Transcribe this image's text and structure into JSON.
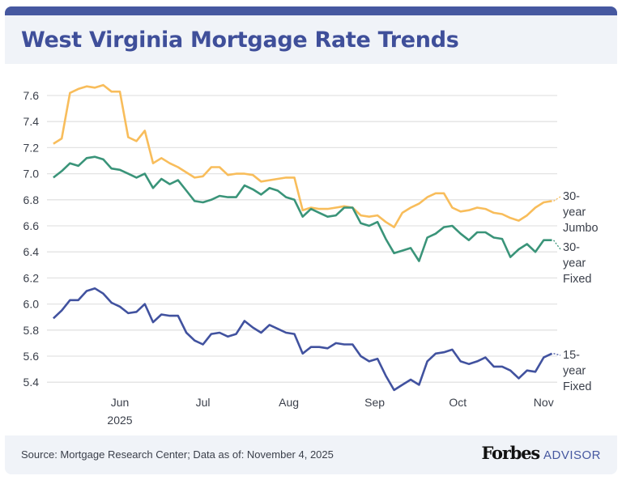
{
  "header": {
    "title": "West Virginia Mortgage Rate Trends"
  },
  "footer": {
    "source": "Source: Mortgage Research Center; Data as of: November 4, 2025",
    "logo_brand": "Forbes",
    "logo_product": "ADVISOR"
  },
  "colors": {
    "header_band": "#4658A0",
    "title": "#3F4F9A",
    "panel_bg": "#F0F3F8",
    "grid": "#E3E3E3"
  },
  "chart_data": {
    "type": "line",
    "title": "West Virginia Mortgage Rate Trends",
    "xlabel": "",
    "ylabel": "",
    "ylim": [
      5.4,
      7.6
    ],
    "grid": true,
    "legend": "end-of-line labels (right)",
    "y_ticks": [
      "5.4",
      "5.6",
      "5.8",
      "6.0",
      "6.2",
      "6.4",
      "6.6",
      "6.8",
      "7.0",
      "7.2",
      "7.4",
      "7.6"
    ],
    "x_ticks": [
      {
        "date": "2025-06-01",
        "label": "Jun",
        "sublabel": "2025"
      },
      {
        "date": "2025-07-01",
        "label": "Jul"
      },
      {
        "date": "2025-08-01",
        "label": "Aug"
      },
      {
        "date": "2025-09-01",
        "label": "Sep"
      },
      {
        "date": "2025-10-01",
        "label": "Oct"
      },
      {
        "date": "2025-11-01",
        "label": "Nov"
      }
    ],
    "x": [
      "2025-05-08",
      "2025-05-11",
      "2025-05-14",
      "2025-05-17",
      "2025-05-20",
      "2025-05-23",
      "2025-05-26",
      "2025-05-29",
      "2025-06-01",
      "2025-06-04",
      "2025-06-07",
      "2025-06-10",
      "2025-06-13",
      "2025-06-16",
      "2025-06-19",
      "2025-06-22",
      "2025-06-25",
      "2025-06-28",
      "2025-07-01",
      "2025-07-04",
      "2025-07-07",
      "2025-07-10",
      "2025-07-13",
      "2025-07-16",
      "2025-07-19",
      "2025-07-22",
      "2025-07-25",
      "2025-07-28",
      "2025-07-31",
      "2025-08-03",
      "2025-08-06",
      "2025-08-09",
      "2025-08-12",
      "2025-08-15",
      "2025-08-18",
      "2025-08-21",
      "2025-08-24",
      "2025-08-27",
      "2025-08-30",
      "2025-09-02",
      "2025-09-05",
      "2025-09-08",
      "2025-09-11",
      "2025-09-14",
      "2025-09-17",
      "2025-09-20",
      "2025-09-23",
      "2025-09-26",
      "2025-09-29",
      "2025-10-02",
      "2025-10-05",
      "2025-10-08",
      "2025-10-11",
      "2025-10-14",
      "2025-10-17",
      "2025-10-20",
      "2025-10-23",
      "2025-10-26",
      "2025-10-29",
      "2025-11-01",
      "2025-11-04"
    ],
    "series": [
      {
        "name": "30-year Jumbo",
        "label_lines": [
          "30-",
          "year",
          "Jumbo"
        ],
        "color": "#F8BD5B",
        "values": [
          7.23,
          7.27,
          7.62,
          7.65,
          7.67,
          7.66,
          7.68,
          7.63,
          7.63,
          7.28,
          7.25,
          7.33,
          7.08,
          7.12,
          7.08,
          7.05,
          7.01,
          6.97,
          6.98,
          7.05,
          7.05,
          6.99,
          7.0,
          7.0,
          6.99,
          6.94,
          6.95,
          6.96,
          6.97,
          6.97,
          6.72,
          6.74,
          6.73,
          6.73,
          6.74,
          6.75,
          6.74,
          6.68,
          6.67,
          6.68,
          6.63,
          6.59,
          6.7,
          6.74,
          6.77,
          6.82,
          6.85,
          6.85,
          6.74,
          6.71,
          6.72,
          6.74,
          6.73,
          6.7,
          6.69,
          6.66,
          6.64,
          6.68,
          6.74,
          6.78,
          6.79
        ]
      },
      {
        "name": "30-year Fixed",
        "label_lines": [
          "30-",
          "year",
          "Fixed"
        ],
        "color": "#3A9479",
        "values": [
          6.97,
          7.02,
          7.08,
          7.06,
          7.12,
          7.13,
          7.11,
          7.04,
          7.03,
          7.0,
          6.97,
          7.0,
          6.89,
          6.96,
          6.92,
          6.95,
          6.87,
          6.79,
          6.78,
          6.8,
          6.83,
          6.82,
          6.82,
          6.91,
          6.88,
          6.84,
          6.89,
          6.87,
          6.82,
          6.8,
          6.67,
          6.73,
          6.7,
          6.67,
          6.68,
          6.74,
          6.74,
          6.62,
          6.6,
          6.63,
          6.5,
          6.39,
          6.41,
          6.43,
          6.33,
          6.51,
          6.54,
          6.59,
          6.6,
          6.54,
          6.49,
          6.55,
          6.55,
          6.51,
          6.5,
          6.36,
          6.42,
          6.46,
          6.4,
          6.49,
          6.49
        ]
      },
      {
        "name": "15-year Fixed",
        "label_lines": [
          "15-",
          "year",
          "Fixed"
        ],
        "color": "#41529F",
        "values": [
          5.89,
          5.95,
          6.03,
          6.03,
          6.1,
          6.12,
          6.08,
          6.01,
          5.98,
          5.93,
          5.94,
          6.0,
          5.86,
          5.92,
          5.91,
          5.91,
          5.78,
          5.72,
          5.69,
          5.77,
          5.78,
          5.75,
          5.77,
          5.87,
          5.82,
          5.78,
          5.84,
          5.81,
          5.78,
          5.77,
          5.62,
          5.67,
          5.67,
          5.66,
          5.7,
          5.69,
          5.69,
          5.6,
          5.56,
          5.58,
          5.45,
          5.34,
          5.38,
          5.42,
          5.38,
          5.56,
          5.62,
          5.63,
          5.65,
          5.56,
          5.54,
          5.56,
          5.59,
          5.52,
          5.52,
          5.49,
          5.43,
          5.49,
          5.48,
          5.59,
          5.62
        ]
      }
    ]
  }
}
